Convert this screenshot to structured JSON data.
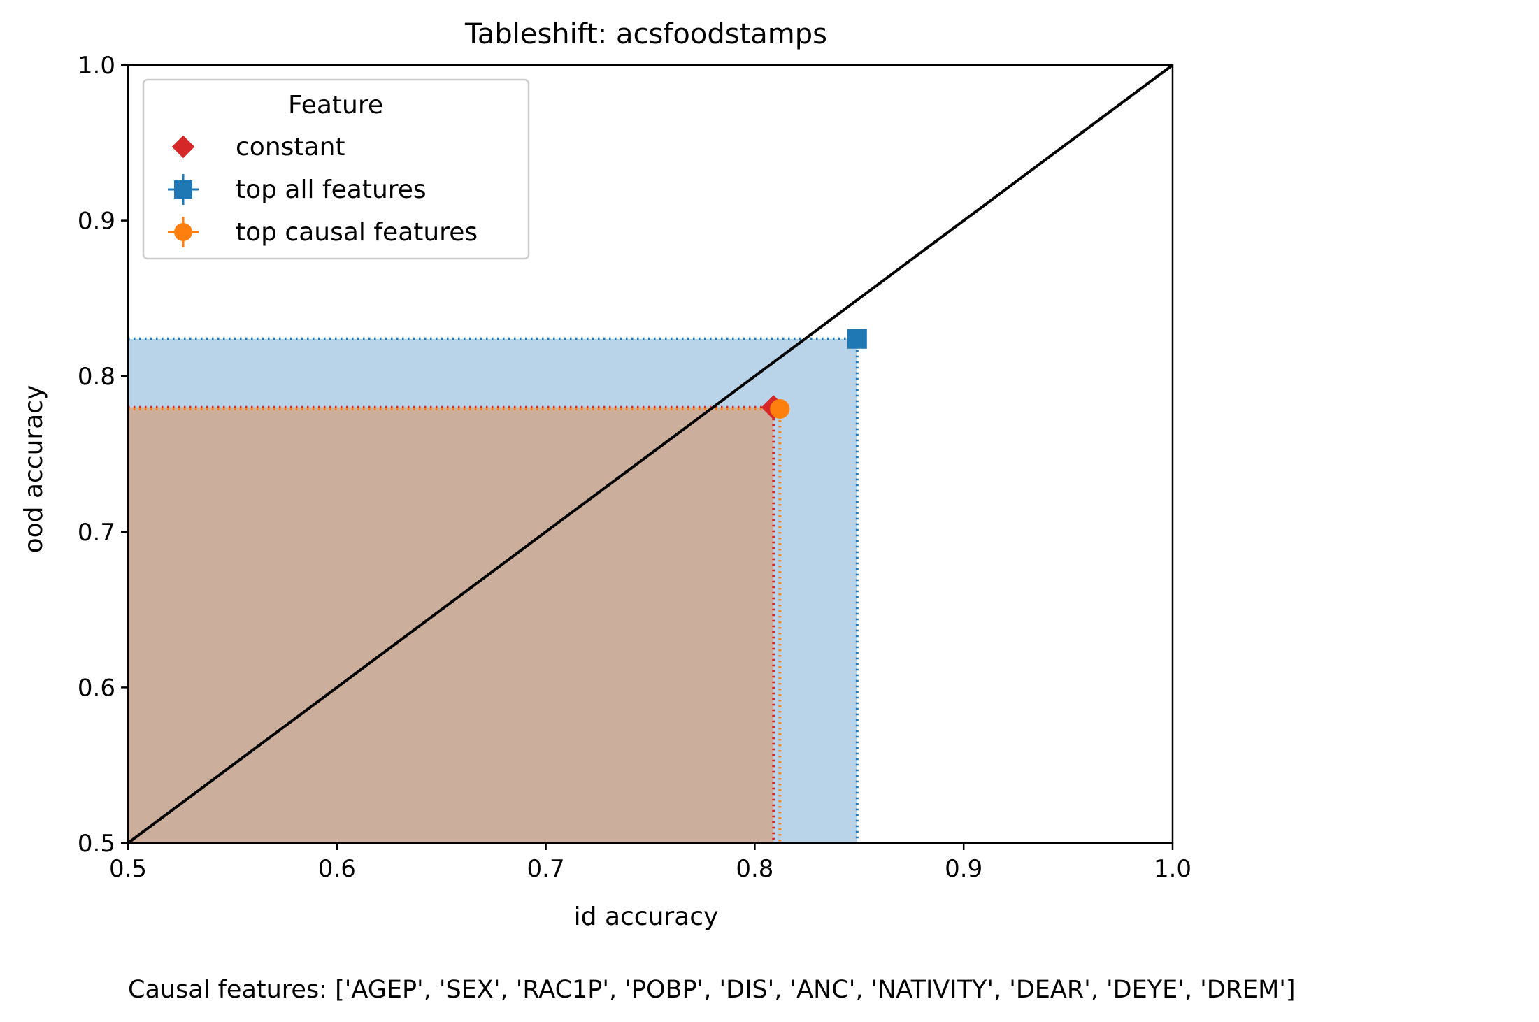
{
  "chart_data": {
    "type": "scatter",
    "title": "Tableshift: acsfoodstamps",
    "xlabel": "id accuracy",
    "ylabel": "ood accuracy",
    "xlim": [
      0.5,
      1.0
    ],
    "ylim": [
      0.5,
      1.0
    ],
    "xticks": [
      "0.5",
      "0.6",
      "0.7",
      "0.8",
      "0.9",
      "1.0"
    ],
    "yticks": [
      "0.5",
      "0.6",
      "0.7",
      "0.8",
      "0.9",
      "1.0"
    ],
    "grid": false,
    "legend": {
      "title": "Feature",
      "placement": "upper-left"
    },
    "diagonal": {
      "from": [
        0.5,
        0.5
      ],
      "to": [
        1.0,
        1.0
      ],
      "color": "#000000"
    },
    "series": [
      {
        "name": "top all features",
        "marker": "square",
        "color": "#1f77b4",
        "fill": "#b9d3e8",
        "x": 0.849,
        "y": 0.824
      },
      {
        "name": "constant",
        "marker": "diamond",
        "color": "#d62728",
        "fill": "#cbae9b",
        "x": 0.809,
        "y": 0.78
      },
      {
        "name": "top causal features",
        "marker": "circle",
        "color": "#ff7f0e",
        "fill": null,
        "x": 0.812,
        "y": 0.779
      }
    ],
    "legend_order": [
      1,
      0,
      2
    ],
    "footnote": "Causal features: ['AGEP', 'SEX', 'RAC1P', 'POBP', 'DIS', 'ANC', 'NATIVITY', 'DEAR', 'DEYE', 'DREM']"
  }
}
